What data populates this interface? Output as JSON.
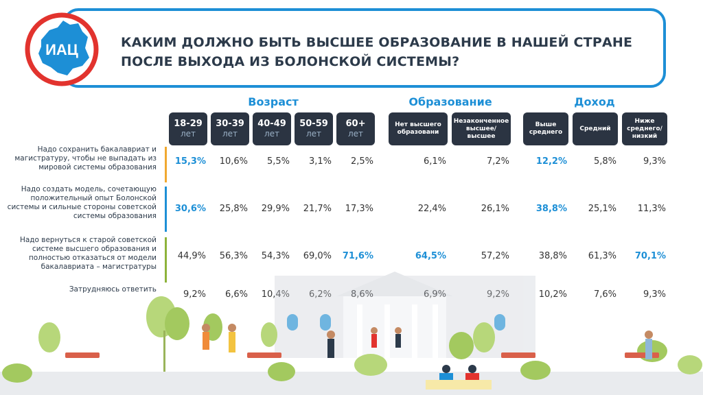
{
  "header": {
    "logo_text": "ИАЦ",
    "title_line1": "КАКИМ ДОЛЖНО БЫТЬ ВЫСШЕЕ ОБРАЗОВАНИЕ В НАШЕЙ СТРАНЕ",
    "title_line2": "ПОСЛЕ ВЫХОДА ИЗ БОЛОНСКОЙ СИСТЕМЫ?"
  },
  "colors": {
    "accent": "#1d8fd6",
    "header_bg": "#2b3442",
    "text": "#333333",
    "bar_orange": "#f0a830",
    "bar_blue": "#1d8fd6",
    "bar_green": "#8db33a"
  },
  "chart_data": {
    "type": "table",
    "groups": [
      {
        "name": "Возраст",
        "columns": [
          0,
          1,
          2,
          3,
          4
        ]
      },
      {
        "name": "Образование",
        "columns": [
          5,
          6
        ]
      },
      {
        "name": "Доход",
        "columns": [
          7,
          8,
          9
        ]
      }
    ],
    "columns": [
      {
        "main": "18-29",
        "sub": "лет"
      },
      {
        "main": "30-39",
        "sub": "лет"
      },
      {
        "main": "40-49",
        "sub": "лет"
      },
      {
        "main": "50-59",
        "sub": "лет"
      },
      {
        "main": "60+",
        "sub": "лет"
      },
      {
        "main": "Нет высшего образовани",
        "sub": ""
      },
      {
        "main": "Незаконченное высшее/ высшее",
        "sub": ""
      },
      {
        "main": "Выше среднего",
        "sub": ""
      },
      {
        "main": "Средний",
        "sub": ""
      },
      {
        "main": "Ниже среднего/ низкий",
        "sub": ""
      }
    ],
    "rows": [
      {
        "label": "Надо сохранить бакалавриат и магистратуру, чтобы не выпадать из мировой системы образования",
        "values": [
          "15,3%",
          "10,6%",
          "5,5%",
          "3,1%",
          "2,5%",
          "6,1%",
          "7,2%",
          "12,2%",
          "5,8%",
          "9,3%"
        ],
        "highlight": [
          0,
          7
        ]
      },
      {
        "label": "Надо создать модель, сочетающую положительный опыт Болонской системы и сильные стороны советской системы образования",
        "values": [
          "30,6%",
          "25,8%",
          "29,9%",
          "21,7%",
          "17,3%",
          "22,4%",
          "26,1%",
          "38,8%",
          "25,1%",
          "11,3%"
        ],
        "highlight": [
          0,
          7
        ]
      },
      {
        "label": "Надо вернуться к старой советской системе высшего образования и полностью отказаться от модели бакалавриата – магистратуры",
        "values": [
          "44,9%",
          "56,3%",
          "54,3%",
          "69,0%",
          "71,6%",
          "64,5%",
          "57,2%",
          "38,8%",
          "61,3%",
          "70,1%"
        ],
        "highlight": [
          4,
          5,
          9
        ]
      },
      {
        "label": "Затрудняюсь ответить",
        "values": [
          "9,2%",
          "6,6%",
          "10,4%",
          "6,2%",
          "8,6%",
          "6,9%",
          "9,2%",
          "10,2%",
          "7,6%",
          "9,3%"
        ],
        "highlight": []
      }
    ]
  }
}
